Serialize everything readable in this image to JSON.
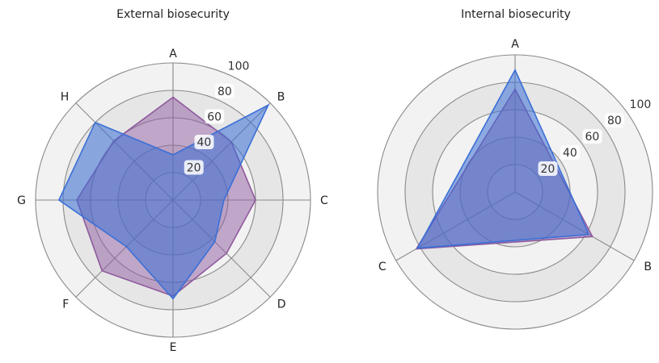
{
  "chart_data": [
    {
      "type": "radar",
      "title": "External biosecurity",
      "axes": [
        "A",
        "B",
        "C",
        "D",
        "E",
        "F",
        "G",
        "H"
      ],
      "rlim": [
        0,
        100
      ],
      "rticks": [
        "20",
        "40",
        "60",
        "80",
        "100"
      ],
      "grid": true,
      "series": [
        {
          "values": [
            75,
            60,
            60,
            55,
            70,
            73,
            70,
            61
          ],
          "color": "#8e5a9e"
        },
        {
          "values": [
            33,
            98,
            37,
            43,
            72,
            48,
            83,
            80
          ],
          "color": "#3b6fd6"
        }
      ]
    },
    {
      "type": "radar",
      "title": "Internal biosecurity",
      "axes": [
        "A",
        "B",
        "C"
      ],
      "rlim": [
        0,
        100
      ],
      "rticks": [
        "20",
        "40",
        "60",
        "80",
        "100"
      ],
      "grid": true,
      "series": [
        {
          "values": [
            75,
            65,
            83
          ],
          "color": "#8e5a9e"
        },
        {
          "values": [
            89,
            62,
            82
          ],
          "color": "#3b6fd6"
        }
      ]
    }
  ]
}
